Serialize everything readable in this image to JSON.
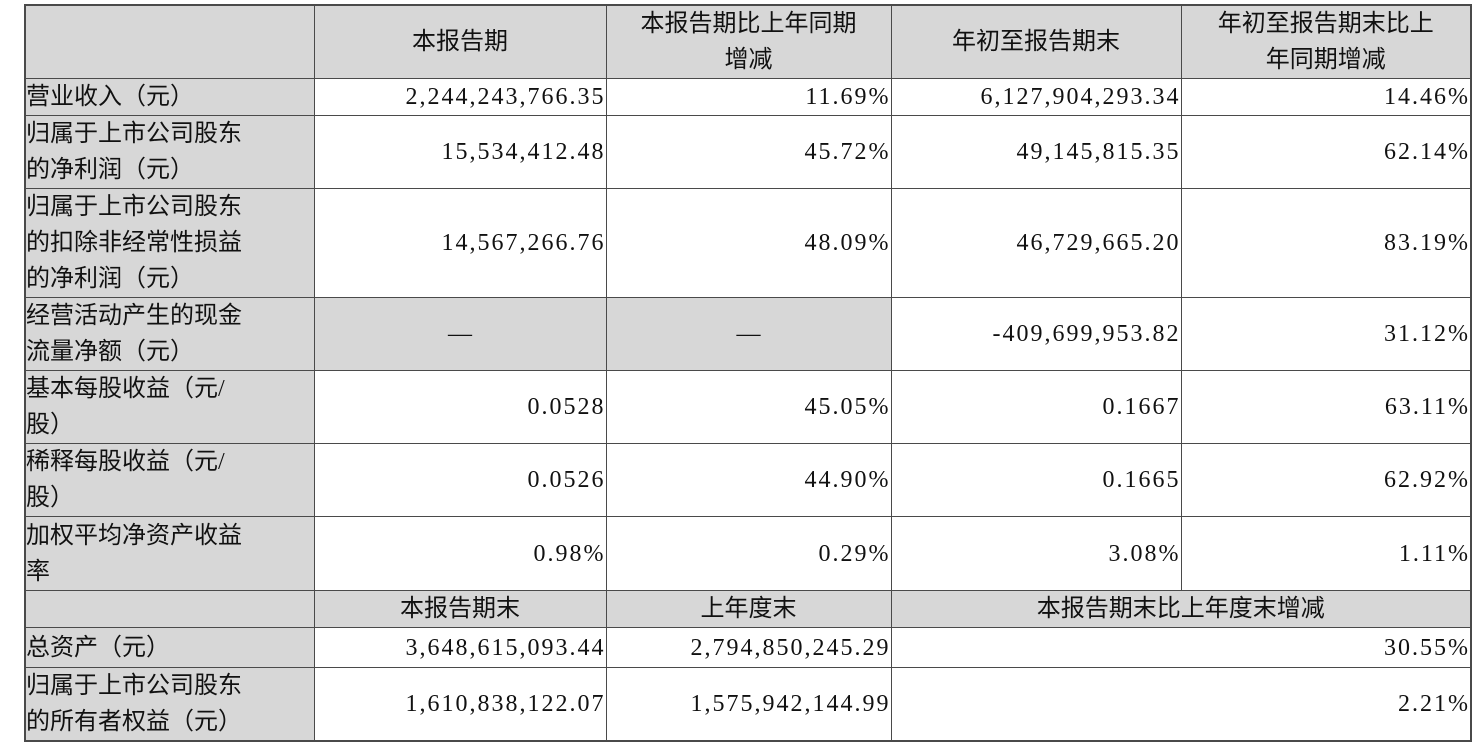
{
  "table": {
    "colors": {
      "header_bg": "#d7d7d7",
      "border": "#4a4a4a"
    },
    "header": {
      "col0": "",
      "col1": "本报告期",
      "col2": "本报告期比上年同期\n增减",
      "col3": "年初至报告期末",
      "col4": "年初至报告期末比上\n年同期增减"
    },
    "rows": [
      {
        "label": "营业收入（元）",
        "current": "2,244,243,766.35",
        "yoy": "11.69%",
        "ytd": "6,127,904,293.34",
        "ytd_yoy": "14.46%"
      },
      {
        "label": "归属于上市公司股东\n的净利润（元）",
        "current": "15,534,412.48",
        "yoy": "45.72%",
        "ytd": "49,145,815.35",
        "ytd_yoy": "62.14%"
      },
      {
        "label": "归属于上市公司股东\n的扣除非经常性损益\n的净利润（元）",
        "current": "14,567,266.76",
        "yoy": "48.09%",
        "ytd": "46,729,665.20",
        "ytd_yoy": "83.19%"
      },
      {
        "label": "经营活动产生的现金\n流量净额（元）",
        "current": "—",
        "yoy": "—",
        "ytd": "-409,699,953.82",
        "ytd_yoy": "31.12%"
      },
      {
        "label": "基本每股收益（元/\n股）",
        "current": "0.0528",
        "yoy": "45.05%",
        "ytd": "0.1667",
        "ytd_yoy": "63.11%"
      },
      {
        "label": "稀释每股收益（元/\n股）",
        "current": "0.0526",
        "yoy": "44.90%",
        "ytd": "0.1665",
        "ytd_yoy": "62.92%"
      },
      {
        "label": "加权平均净资产收益\n率",
        "current": "0.98%",
        "yoy": "0.29%",
        "ytd": "3.08%",
        "ytd_yoy": "1.11%"
      }
    ],
    "subheader": {
      "col0": "",
      "col1": "本报告期末",
      "col2": "上年度末",
      "col3_4": "本报告期末比上年度末增减"
    },
    "bottom_rows": [
      {
        "label": "总资产（元）",
        "current_end": "3,648,615,093.44",
        "prev_year_end": "2,794,850,245.29",
        "change": "30.55%"
      },
      {
        "label": "归属于上市公司股东\n的所有者权益（元）",
        "current_end": "1,610,838,122.07",
        "prev_year_end": "1,575,942,144.99",
        "change": "2.21%"
      }
    ]
  }
}
